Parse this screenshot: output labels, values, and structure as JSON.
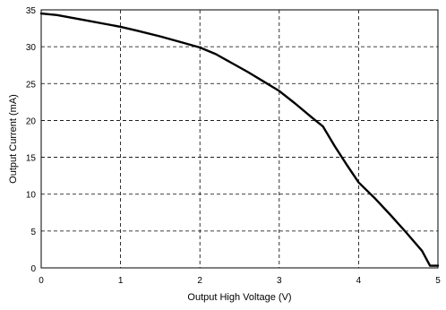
{
  "chart_data": {
    "type": "line",
    "title": "",
    "xlabel": "Output High Voltage (V)",
    "ylabel": "Output Current (mA)",
    "xlim": [
      0,
      5
    ],
    "ylim": [
      0,
      35
    ],
    "x_ticks": [
      "0",
      "1",
      "2",
      "3",
      "4",
      "5"
    ],
    "y_ticks": [
      "0",
      "5",
      "10",
      "15",
      "20",
      "25",
      "30",
      "35"
    ],
    "grid": true,
    "legend": "none",
    "series": [
      {
        "x": [
          0,
          0.2,
          0.5,
          0.8,
          1.0,
          1.2,
          1.5,
          1.8,
          2.0,
          2.2,
          2.4,
          2.6,
          2.8,
          3.0,
          3.2,
          3.4,
          3.55,
          3.7,
          3.85,
          4.0,
          4.2,
          4.4,
          4.6,
          4.8,
          4.9,
          5.0
        ],
        "y": [
          34.5,
          34.3,
          33.7,
          33.1,
          32.7,
          32.2,
          31.4,
          30.5,
          29.9,
          29.0,
          27.8,
          26.6,
          25.3,
          24.0,
          22.3,
          20.5,
          19.2,
          16.5,
          14.0,
          11.6,
          9.5,
          7.2,
          4.8,
          2.3,
          0.3,
          0.3
        ]
      }
    ]
  }
}
